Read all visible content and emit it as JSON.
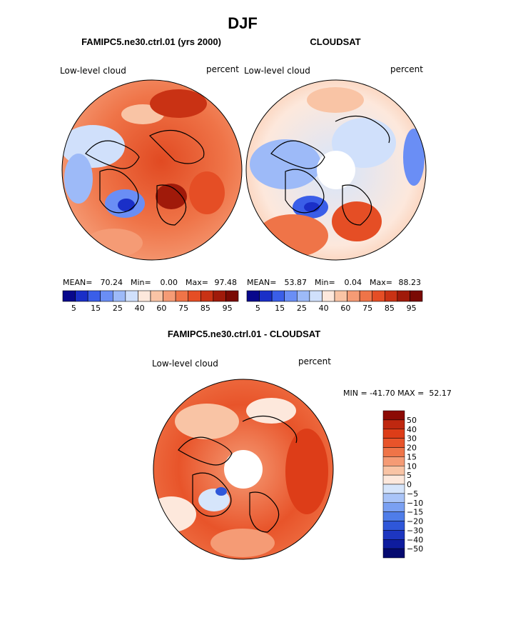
{
  "chart_data": {
    "type": "contour_map",
    "title": "DJF",
    "colors": {
      "abs_scale": [
        "#08088c",
        "#1a2fc8",
        "#3a5ee8",
        "#6a8ef5",
        "#9dbaf8",
        "#d0e0fb",
        "#fde8dc",
        "#f9c4a5",
        "#f59b75",
        "#ef7448",
        "#e54e25",
        "#c93214",
        "#a01a0a",
        "#7a0a04"
      ],
      "diff_pos": [
        "#fde8dc",
        "#f9c4a5",
        "#f59b75",
        "#ef7448",
        "#e8542a",
        "#dd3d18",
        "#bf2810",
        "#8c0a04"
      ],
      "diff_neg": [
        "#d6e5fb",
        "#a9c4f8",
        "#7aa0f2",
        "#4f7de9",
        "#2f57d9",
        "#1d36c0",
        "#0e1c9e",
        "#050a70"
      ]
    },
    "panels": [
      {
        "title": "FAMIPC5.ne30.ctrl.01 (yrs 2000)",
        "left_label": "Low-level cloud",
        "right_label": "percent",
        "stats": {
          "mean_label": "MEAN=",
          "mean": "70.24",
          "min_label": "Min=",
          "min": "0.00",
          "max_label": "Max=",
          "max": "97.48"
        },
        "colorbar_ticks": [
          "5",
          "15",
          "25",
          "40",
          "60",
          "75",
          "85",
          "95"
        ]
      },
      {
        "title": "CLOUDSAT",
        "left_label": "Low-level cloud",
        "right_label": "percent",
        "stats": {
          "mean_label": "MEAN=",
          "mean": "53.87",
          "min_label": "Min=",
          "min": "0.04",
          "max_label": "Max=",
          "max": "88.23"
        },
        "colorbar_ticks": [
          "5",
          "15",
          "25",
          "40",
          "60",
          "75",
          "85",
          "95"
        ]
      },
      {
        "title": "FAMIPC5.ne30.ctrl.01 - CLOUDSAT",
        "left_label": "Low-level cloud",
        "right_label": "percent",
        "stats_text": "MIN = -41.70 MAX =  52.17",
        "colorbar_ticks": [
          "50",
          "40",
          "30",
          "20",
          "15",
          "10",
          "5",
          "0",
          "−5",
          "−10",
          "−15",
          "−20",
          "−30",
          "−40",
          "−50"
        ]
      }
    ]
  }
}
